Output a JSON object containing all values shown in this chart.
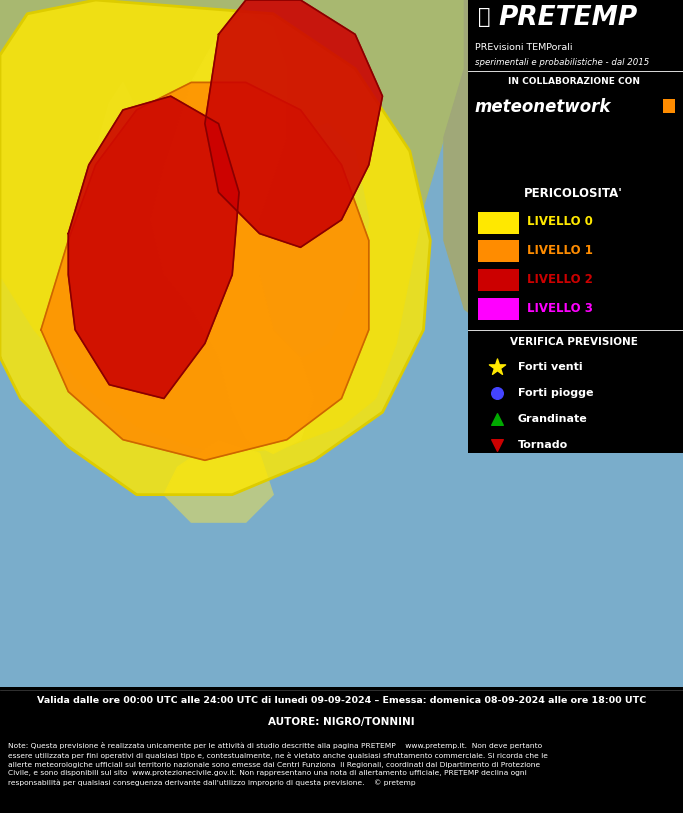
{
  "title_main": "PRETEMP",
  "title_sub1": "PREvisioni TEMPorali",
  "title_sub2": "sperimentali e probabilistiche - dal 2015",
  "collab_text": "IN COLLABORAZIONE CON",
  "collab_logo": "meteonetwork",
  "pericolosita_title": "PERICOLOSITA'",
  "livelli": [
    "LIVELLO 0",
    "LIVELLO 1",
    "LIVELLO 2",
    "LIVELLO 3"
  ],
  "livello_colors": [
    "#FFE800",
    "#FF8C00",
    "#CC0000",
    "#FF00FF"
  ],
  "verifica_title": "VERIFICA PREVISIONE",
  "verifica_items": [
    "Forti venti",
    "Forti piogge",
    "Grandinate",
    "Tornado"
  ],
  "verifica_colors": [
    "#FFE800",
    "#4444FF",
    "#00AA00",
    "#CC0000"
  ],
  "verifica_markers": [
    "*",
    "o",
    "^",
    "v"
  ],
  "footer_line1": "Valida dalle ore 00:00 UTC alle 24:00 UTC di lunedì 09-09-2024 – Emessa: domenica 08-09-2024 alle ore 18:00 UTC",
  "footer_line2": "AUTORE: NIGRO/TONNINI",
  "footer_note": "Note: Questa previsione è realizzata unicamente per le attività di studio descritte alla pagina PRETEMP    www.pretemp.it.  Non deve pertanto\nessere utilizzata per fini operativi di qualsiasi tipo e, contestualmente, ne è vietato anche qualsiasi sfruttamento commerciale. Si ricorda che le\nallerte meteorologiche ufficiali sul territorio nazionale sono emesse dai Centri Funziona  li Regionali, coordinati dal Dipartimento di Protezione\nCivile, e sono disponibili sul sito  www.protezionecivile.gov.it. Non rappresentano una nota di allertamento ufficiale, PRETEMP declina ogni\nresponsabilità per qualsiasi conseguenza derivante dall'utilizzo improprio di questa previsione.    © pretemp",
  "bg_color": "#000000",
  "sea_color": "#7AADCB",
  "land_color": "#A8B878",
  "text_color": "#FFFFFF"
}
